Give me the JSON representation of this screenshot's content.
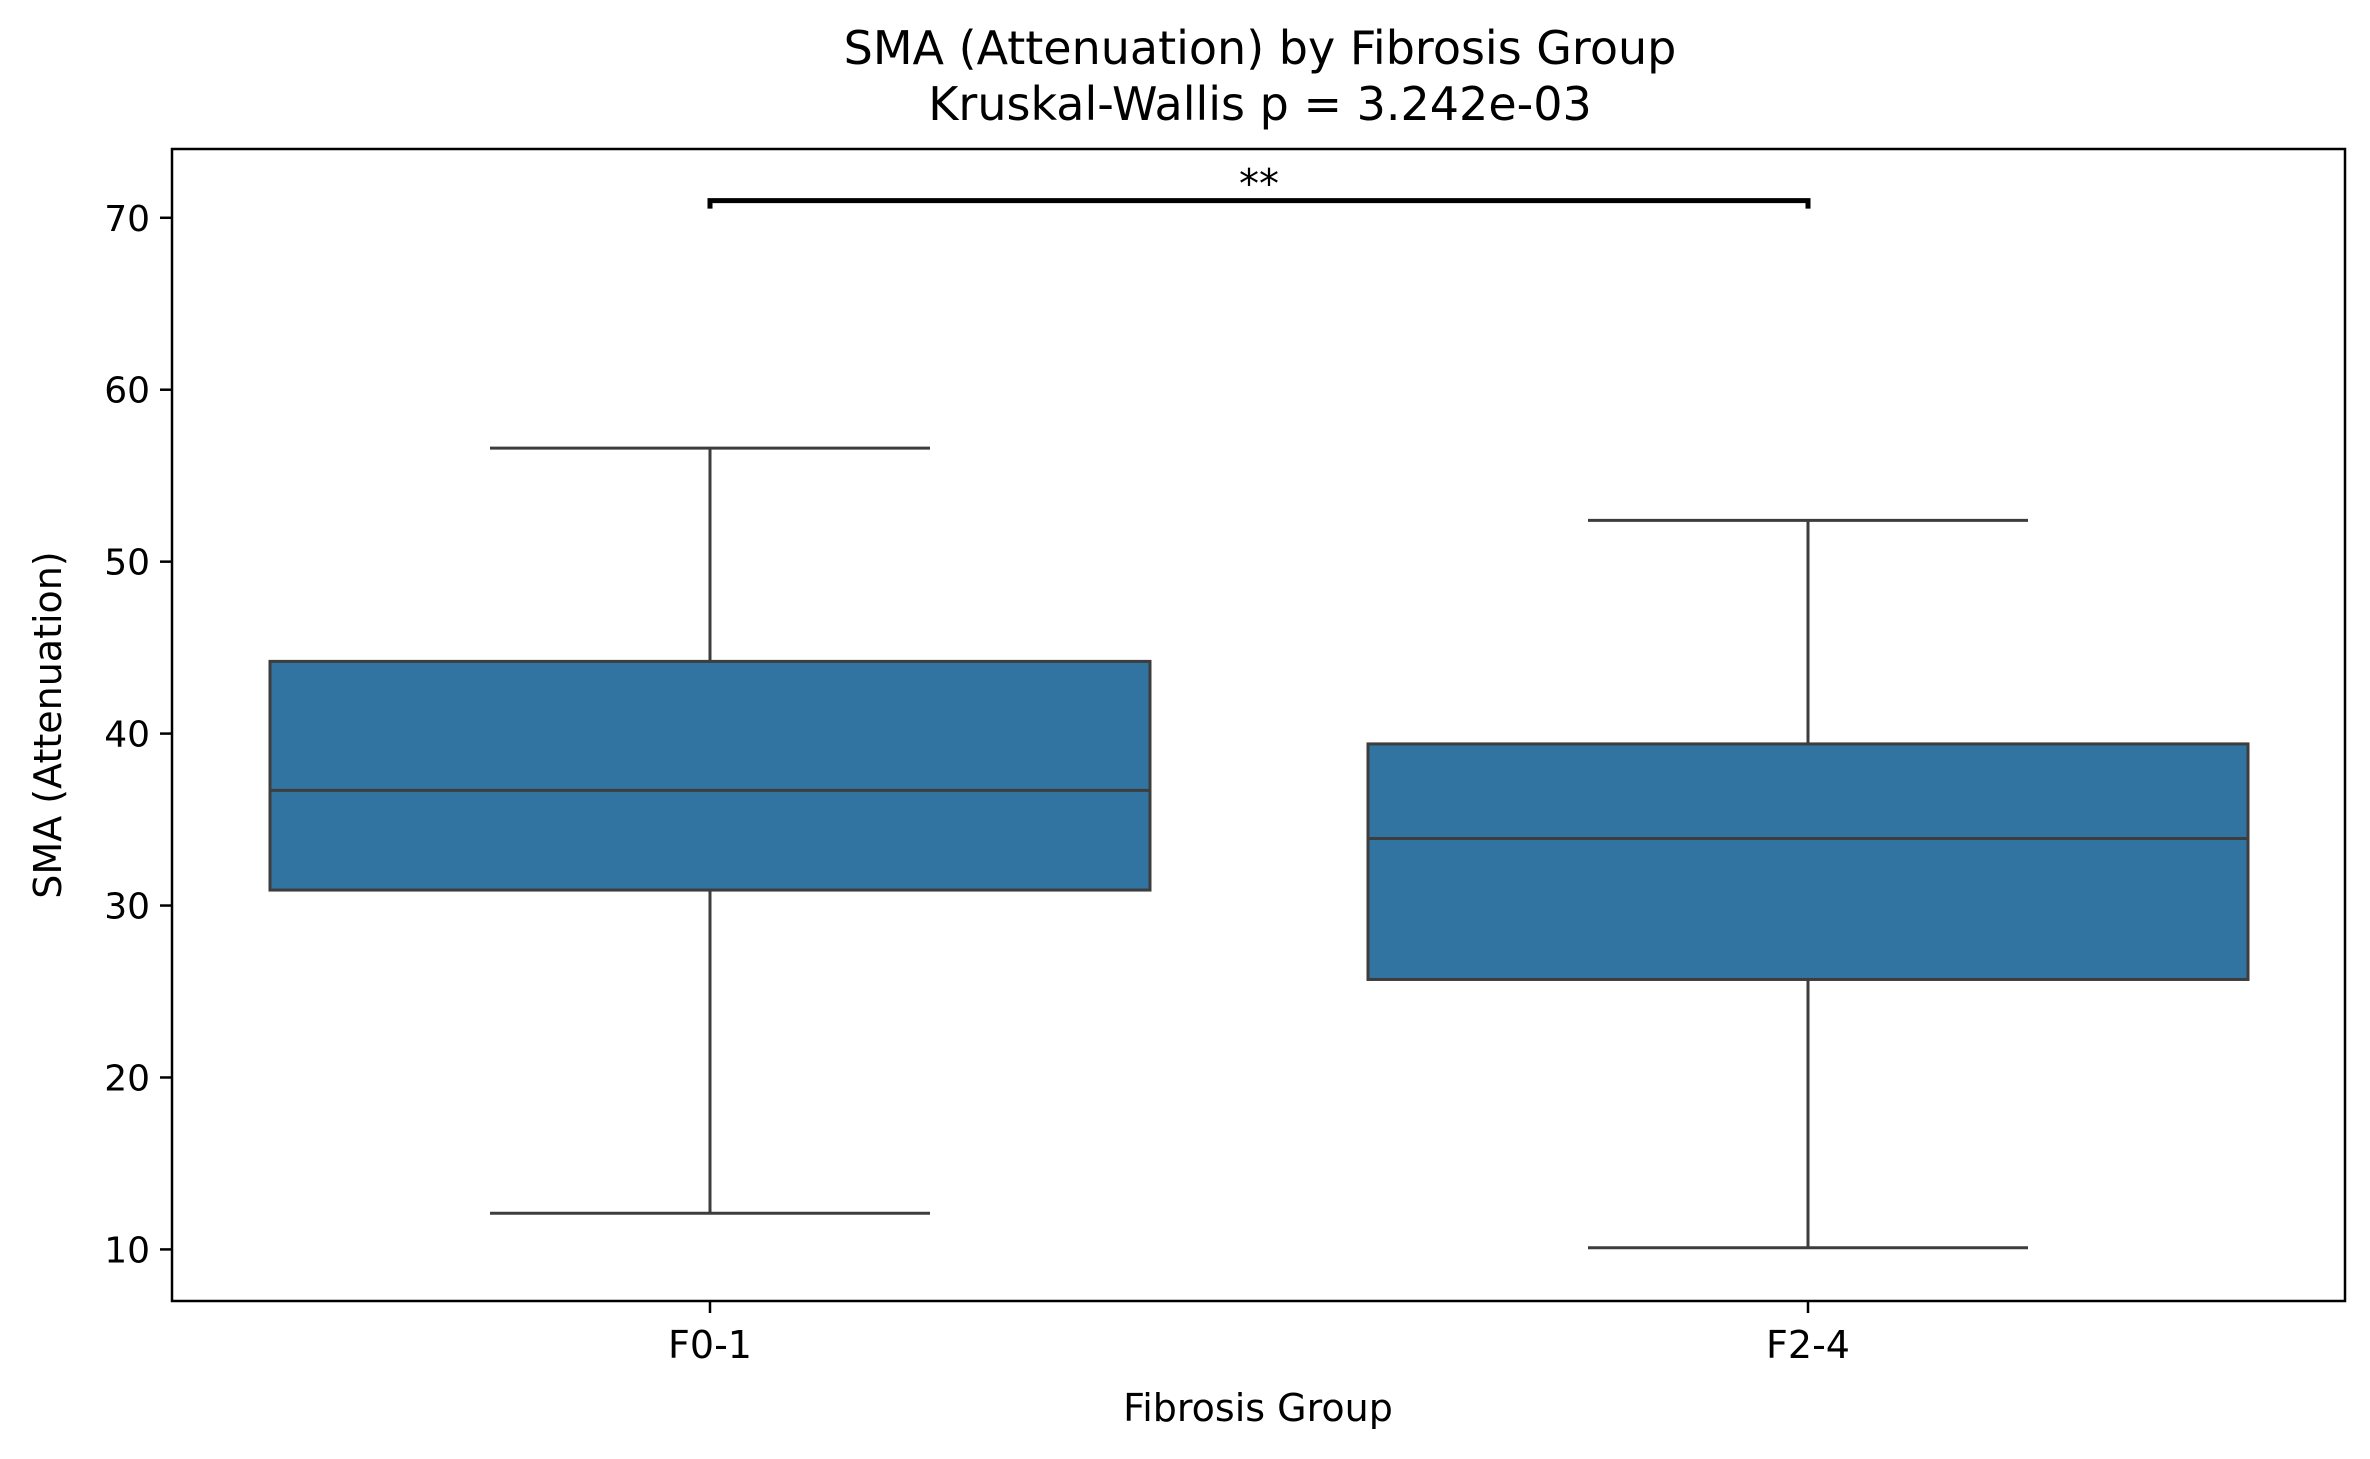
{
  "chart_data": {
    "type": "box",
    "title": "SMA (Attenuation) by Fibrosis Group",
    "subtitle": "Kruskal-Wallis p = 3.242e-03",
    "xlabel": "Fibrosis Group",
    "ylabel": "SMA (Attenuation)",
    "ylim": [
      7,
      74
    ],
    "yticks": [
      10,
      20,
      30,
      40,
      50,
      60,
      70
    ],
    "categories": [
      "F0-1",
      "F2-4"
    ],
    "boxes": [
      {
        "category": "F0-1",
        "whisker_low": 12.1,
        "q1": 30.9,
        "median": 36.7,
        "q3": 44.2,
        "whisker_high": 56.6
      },
      {
        "category": "F2-4",
        "whisker_low": 10.1,
        "q1": 25.7,
        "median": 33.9,
        "q3": 39.4,
        "whisker_high": 52.4
      }
    ],
    "significance": {
      "from": "F0-1",
      "to": "F2-4",
      "y": 71.0,
      "label": "**"
    },
    "box_color": "#3274a1",
    "line_color": "#3d3d3d",
    "grid": false,
    "legend": "none"
  }
}
